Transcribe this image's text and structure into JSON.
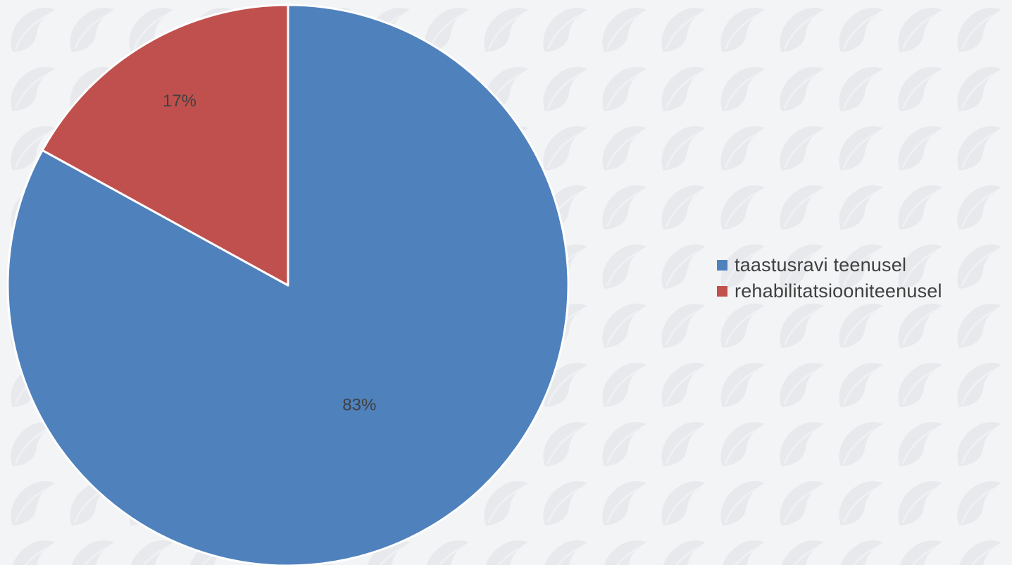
{
  "chart_data": {
    "type": "pie",
    "title": "",
    "start_angle_deg": 0,
    "direction": "clockwise",
    "legend_position": "right",
    "slices": [
      {
        "label": "taastusravi teenusel",
        "value": 83,
        "data_label": "83%",
        "color": "#4f81bd"
      },
      {
        "label": "rehabilitatsiooniteenusel",
        "value": 17,
        "data_label": "17%",
        "color": "#c0504d"
      }
    ]
  },
  "legend": {
    "items": [
      {
        "label": "taastusravi teenusel",
        "color": "#4f81bd"
      },
      {
        "label": "rehabilitatsiooniteenusel",
        "color": "#c0504d"
      }
    ]
  },
  "theme": {
    "background": "#f3f4f6",
    "pattern_color": "#e6e8ec",
    "slice_border": "#ffffff",
    "label_color": "#404040"
  }
}
